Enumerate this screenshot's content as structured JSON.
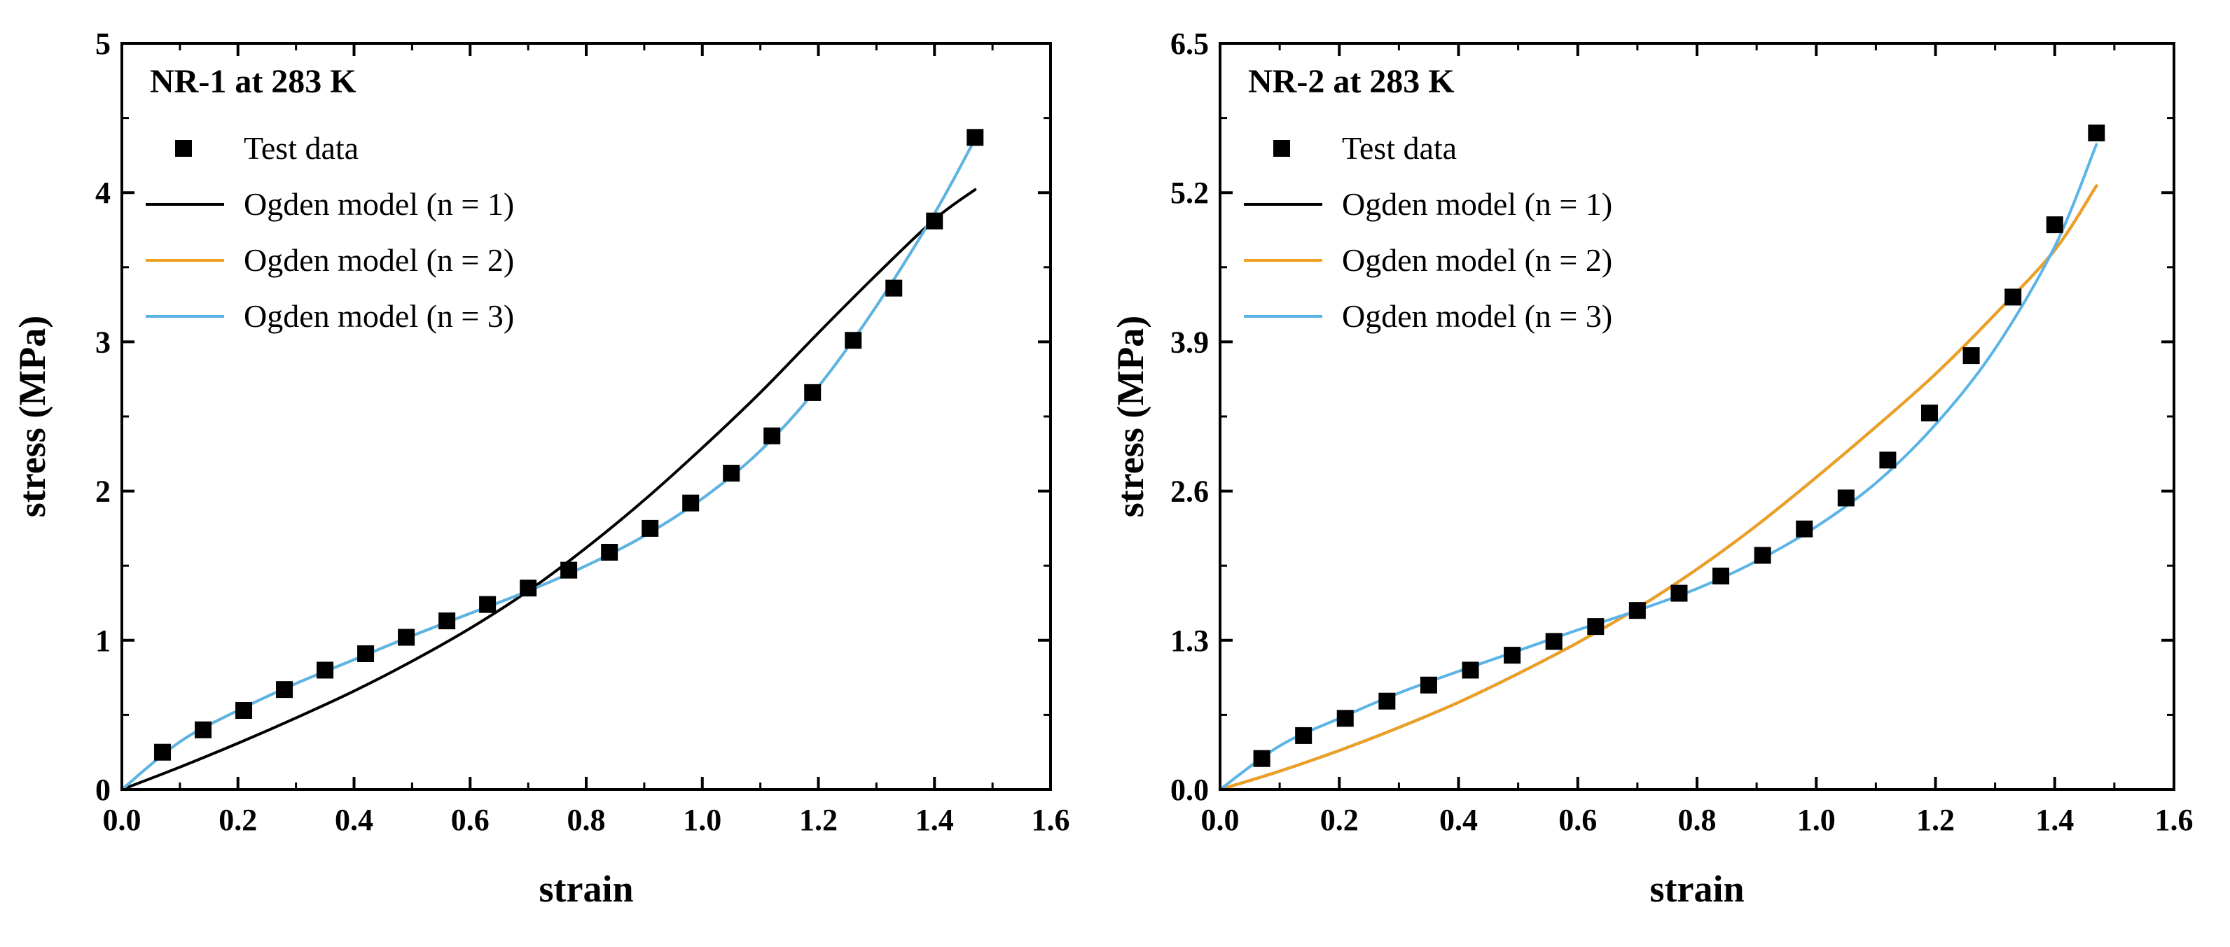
{
  "chart_data": [
    {
      "type": "scatter",
      "title": "NR-1 at 283 K",
      "xlabel": "strain",
      "ylabel": "stress (MPa)",
      "xlim": [
        0,
        1.6
      ],
      "ylim": [
        0,
        5
      ],
      "xticks": [
        "0.0",
        "0.2",
        "0.4",
        "0.6",
        "0.8",
        "1.0",
        "1.2",
        "1.4",
        "1.6"
      ],
      "yticks": [
        "0",
        "1",
        "2",
        "3",
        "4",
        "5"
      ],
      "legend_position": "top-left",
      "series": [
        {
          "name": "Test data",
          "kind": "markers",
          "color": "#000000",
          "x": [
            0.07,
            0.14,
            0.21,
            0.28,
            0.35,
            0.42,
            0.49,
            0.56,
            0.63,
            0.7,
            0.77,
            0.84,
            0.91,
            0.98,
            1.05,
            1.12,
            1.19,
            1.26,
            1.33,
            1.4,
            1.47
          ],
          "y": [
            0.25,
            0.4,
            0.53,
            0.67,
            0.8,
            0.91,
            1.02,
            1.13,
            1.24,
            1.35,
            1.47,
            1.59,
            1.75,
            1.92,
            2.12,
            2.37,
            2.66,
            3.01,
            3.36,
            3.81,
            4.37
          ]
        },
        {
          "name": "Ogden model (n = 1)",
          "kind": "line",
          "color": "#000000",
          "x": [
            0.0,
            0.1,
            0.2,
            0.3,
            0.4,
            0.5,
            0.6,
            0.7,
            0.8,
            0.9,
            1.0,
            1.1,
            1.2,
            1.3,
            1.4,
            1.47
          ],
          "y": [
            0.0,
            0.15,
            0.31,
            0.48,
            0.66,
            0.86,
            1.08,
            1.33,
            1.62,
            1.94,
            2.29,
            2.66,
            3.06,
            3.45,
            3.82,
            4.02
          ]
        },
        {
          "name": "Ogden model (n = 2)",
          "kind": "line",
          "color": "#F0A020",
          "x": [
            0.0,
            0.1,
            0.2,
            0.3,
            0.4,
            0.5,
            0.6,
            0.7,
            0.8,
            0.9,
            1.0,
            1.1,
            1.2,
            1.3,
            1.4,
            1.47
          ],
          "y": [
            0.0,
            0.32,
            0.53,
            0.71,
            0.87,
            1.03,
            1.18,
            1.33,
            1.5,
            1.7,
            1.95,
            2.27,
            2.7,
            3.24,
            3.86,
            4.36
          ]
        },
        {
          "name": "Ogden model (n = 3)",
          "kind": "line",
          "color": "#5AB4E6",
          "x": [
            0.0,
            0.1,
            0.2,
            0.3,
            0.4,
            0.5,
            0.6,
            0.7,
            0.8,
            0.9,
            1.0,
            1.1,
            1.2,
            1.3,
            1.4,
            1.47
          ],
          "y": [
            0.0,
            0.32,
            0.53,
            0.71,
            0.87,
            1.03,
            1.18,
            1.33,
            1.5,
            1.7,
            1.95,
            2.27,
            2.7,
            3.24,
            3.86,
            4.36
          ]
        }
      ]
    },
    {
      "type": "scatter",
      "title": "NR-2 at 283 K",
      "xlabel": "strain",
      "ylabel": "stress (MPa)",
      "xlim": [
        0,
        1.6
      ],
      "ylim": [
        0,
        6.5
      ],
      "xticks": [
        "0.0",
        "0.2",
        "0.4",
        "0.6",
        "0.8",
        "1.0",
        "1.2",
        "1.4",
        "1.6"
      ],
      "yticks": [
        "0.0",
        "1.3",
        "2.6",
        "3.9",
        "5.2",
        "6.5"
      ],
      "legend_position": "top-left",
      "series": [
        {
          "name": "Test data",
          "kind": "markers",
          "color": "#000000",
          "x": [
            0.07,
            0.14,
            0.21,
            0.28,
            0.35,
            0.42,
            0.49,
            0.56,
            0.63,
            0.7,
            0.77,
            0.84,
            0.91,
            0.98,
            1.05,
            1.12,
            1.19,
            1.26,
            1.33,
            1.4,
            1.47
          ],
          "y": [
            0.27,
            0.47,
            0.62,
            0.77,
            0.91,
            1.04,
            1.17,
            1.29,
            1.42,
            1.56,
            1.71,
            1.86,
            2.04,
            2.27,
            2.54,
            2.87,
            3.28,
            3.78,
            4.29,
            4.92,
            5.72
          ]
        },
        {
          "name": "Ogden model (n = 1)",
          "kind": "line",
          "color": "#000000",
          "x": [
            0.0,
            0.1,
            0.2,
            0.3,
            0.4,
            0.5,
            0.6,
            0.7,
            0.8,
            0.9,
            1.0,
            1.1,
            1.2,
            1.3,
            1.4,
            1.47
          ],
          "y": [
            0.0,
            0.16,
            0.34,
            0.54,
            0.76,
            1.01,
            1.28,
            1.58,
            1.92,
            2.3,
            2.72,
            3.16,
            3.62,
            4.14,
            4.7,
            5.26
          ]
        },
        {
          "name": "Ogden model (n = 2)",
          "kind": "line",
          "color": "#F0A020",
          "x": [
            0.0,
            0.1,
            0.2,
            0.3,
            0.4,
            0.5,
            0.6,
            0.7,
            0.8,
            0.9,
            1.0,
            1.1,
            1.2,
            1.3,
            1.4,
            1.47
          ],
          "y": [
            0.0,
            0.16,
            0.34,
            0.54,
            0.76,
            1.01,
            1.28,
            1.58,
            1.92,
            2.3,
            2.72,
            3.16,
            3.62,
            4.14,
            4.7,
            5.26
          ]
        },
        {
          "name": "Ogden model (n = 3)",
          "kind": "line",
          "color": "#5AB4E6",
          "x": [
            0.0,
            0.1,
            0.2,
            0.3,
            0.4,
            0.5,
            0.6,
            0.7,
            0.8,
            0.9,
            1.0,
            1.1,
            1.2,
            1.3,
            1.4,
            1.47
          ],
          "y": [
            0.0,
            0.38,
            0.62,
            0.84,
            1.03,
            1.21,
            1.39,
            1.56,
            1.75,
            1.99,
            2.29,
            2.67,
            3.18,
            3.84,
            4.73,
            5.62
          ]
        }
      ]
    }
  ]
}
